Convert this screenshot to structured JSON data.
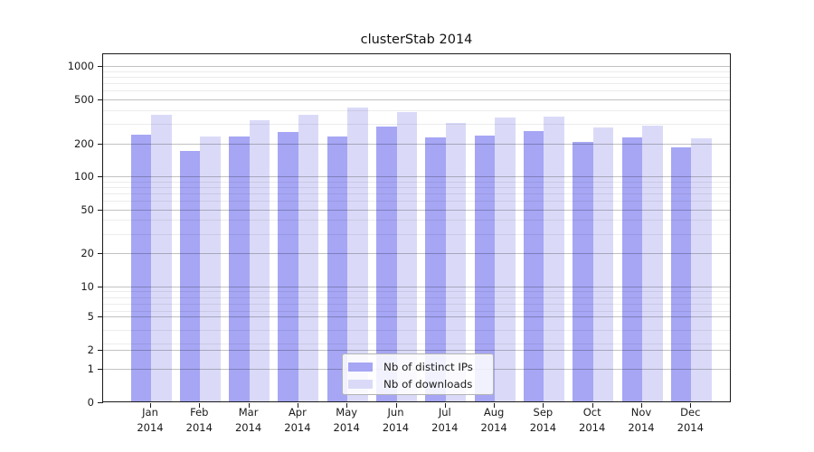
{
  "chart_data": {
    "type": "bar",
    "title": "clusterStab 2014",
    "categories": [
      "Jan 2014",
      "Feb 2014",
      "Mar 2014",
      "Apr 2014",
      "May 2014",
      "Jun 2014",
      "Jul 2014",
      "Aug 2014",
      "Sep 2014",
      "Oct 2014",
      "Nov 2014",
      "Dec 2014"
    ],
    "series": [
      {
        "name": "Nb of distinct IPs",
        "color": "#a6a6f5",
        "values": [
          240,
          170,
          230,
          255,
          230,
          285,
          225,
          235,
          260,
          205,
          225,
          185
        ]
      },
      {
        "name": "Nb of downloads",
        "color": "#dadaf8",
        "values": [
          365,
          230,
          325,
          360,
          420,
          385,
          305,
          345,
          350,
          280,
          290,
          220
        ]
      }
    ],
    "yscale": "log",
    "yticks": [
      0,
      1,
      2,
      5,
      10,
      20,
      50,
      100,
      200,
      500,
      1000
    ],
    "ylim": [
      0,
      1300
    ],
    "xlabel": "",
    "ylabel": "",
    "grid": true,
    "legend_position": "lower center"
  }
}
